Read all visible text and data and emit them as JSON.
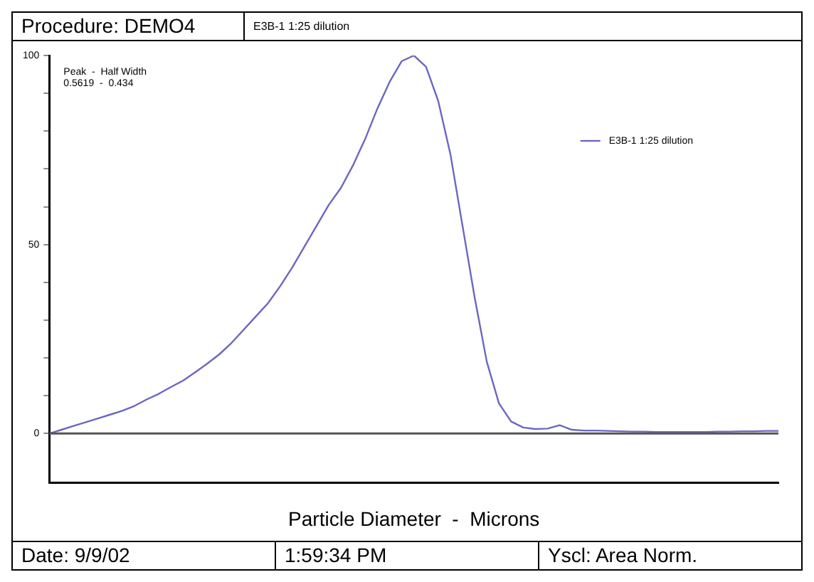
{
  "chart_data": {
    "type": "line",
    "title": "Procedure: DEMO4",
    "subtitle": "E3B-1 1:25 dilution",
    "xlabel": "Particle Diameter  -  Microns",
    "annotations": [
      "Peak  -  Half Width",
      "0.5619  -  0.434",
      "Date: 9/9/02",
      "1:59:34 PM",
      "Yscl: Area Norm."
    ],
    "categories": [
      null,
      null,
      null,
      null,
      null,
      null,
      null,
      null,
      null,
      null,
      null,
      null,
      null,
      null,
      null,
      null,
      null,
      null,
      null,
      null,
      null,
      null,
      null,
      null,
      null,
      null,
      null,
      null,
      null,
      null,
      null,
      null,
      null,
      null,
      null,
      null,
      null,
      null,
      null,
      null,
      null,
      null,
      null,
      null,
      null,
      null,
      null,
      null,
      null,
      null,
      null,
      null,
      null,
      null,
      null,
      null,
      null,
      null,
      null,
      null,
      null
    ],
    "series": [
      {
        "name": "E3B-1 1:25 dilution",
        "color": "#6b66c4",
        "values": [
          0,
          1,
          2,
          3,
          4,
          5,
          6,
          7.3,
          9,
          10.5,
          12.3,
          14,
          16.2,
          18.5,
          21,
          24,
          27.5,
          31,
          34.5,
          39,
          44,
          49.5,
          55,
          60.5,
          65,
          71,
          78,
          86,
          93,
          98.5,
          100,
          97,
          88,
          74,
          55,
          36,
          19,
          8,
          3.2,
          1.6,
          1.2,
          1.3,
          2.2,
          1,
          0.8,
          0.8,
          0.7,
          0.6,
          0.5,
          0.5,
          0.4,
          0.4,
          0.4,
          0.4,
          0.4,
          0.5,
          0.5,
          0.6,
          0.6,
          0.7,
          0.7
        ]
      }
    ],
    "ylim": [
      -13,
      100
    ],
    "yticks": [
      0,
      {
        "value": 10,
        "label": null
      },
      {
        "value": 20,
        "label": null
      },
      {
        "value": 30,
        "label": null
      },
      {
        "value": 40,
        "label": null
      },
      50,
      {
        "value": 60,
        "label": null
      },
      {
        "value": 70,
        "label": null
      },
      {
        "value": 80,
        "label": null
      },
      {
        "value": 90,
        "label": null
      },
      100
    ],
    "ref_lines": [
      {
        "axis": "y",
        "value": 0,
        "color": "#555555"
      }
    ],
    "tick_labels": "y",
    "grid": false,
    "legend": "top right",
    "marker": "none",
    "line_style": "solid"
  }
}
